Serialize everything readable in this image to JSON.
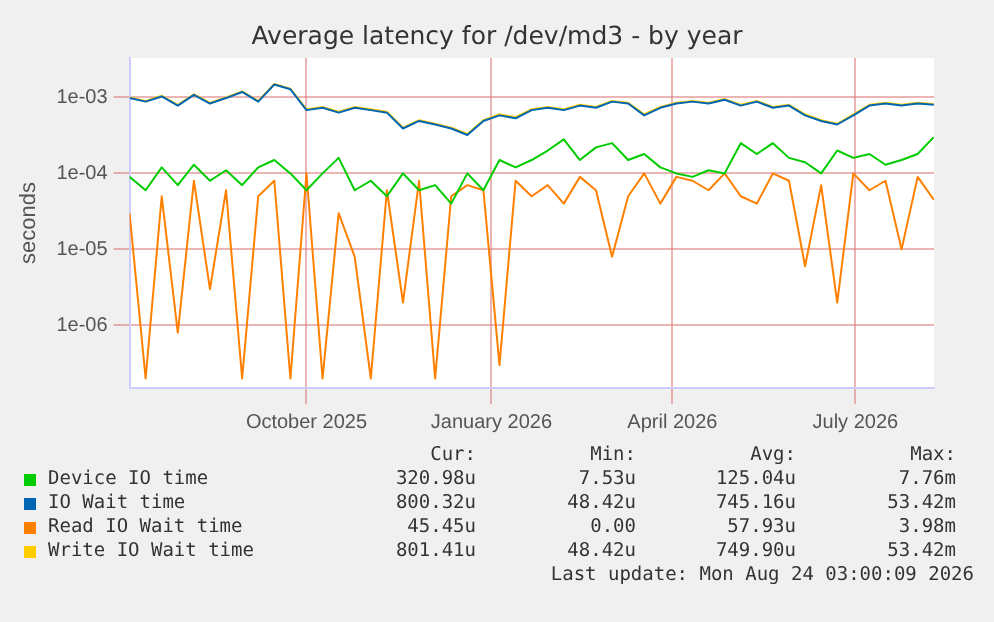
{
  "chart_data": {
    "type": "line",
    "title": "Average latency for /dev/md3 - by year",
    "ylabel": "seconds",
    "log": "y",
    "grid": true,
    "legend": "bottom",
    "marker": "none",
    "line_style": "solid",
    "x": [
      "2025-07-20",
      "2025-07-28",
      "2025-08-05",
      "2025-08-13",
      "2025-08-21",
      "2025-08-29",
      "2025-09-06",
      "2025-09-14",
      "2025-09-22",
      "2025-09-30",
      "2025-10-08",
      "2025-10-16",
      "2025-10-24",
      "2025-11-01",
      "2025-11-09",
      "2025-11-17",
      "2025-11-25",
      "2025-12-03",
      "2025-12-11",
      "2025-12-19",
      "2025-12-27",
      "2026-01-04",
      "2026-01-12",
      "2026-01-20",
      "2026-01-28",
      "2026-02-05",
      "2026-02-13",
      "2026-02-21",
      "2026-03-01",
      "2026-03-09",
      "2026-03-17",
      "2026-03-25",
      "2026-04-02",
      "2026-04-10",
      "2026-04-18",
      "2026-04-26",
      "2026-05-04",
      "2026-05-12",
      "2026-05-20",
      "2026-05-28",
      "2026-06-05",
      "2026-06-13",
      "2026-06-21",
      "2026-06-29",
      "2026-07-07",
      "2026-07-15",
      "2026-07-23",
      "2026-07-31",
      "2026-08-08",
      "2026-08-16",
      "2026-08-24"
    ],
    "xlim": [
      "2025-07-20",
      "2026-08-24T03:00"
    ],
    "xticks": [
      {
        "value": "2025-10-16",
        "label": "October 2025"
      },
      {
        "value": "2026-01-16",
        "label": "January 2026"
      },
      {
        "value": "2026-04-16",
        "label": "April 2026"
      },
      {
        "value": "2026-07-16",
        "label": "July 2026"
      }
    ],
    "ylim": [
      1.5e-07,
      0.0033
    ],
    "yticks": [
      {
        "value": 1e-06,
        "label": "1e-06"
      },
      {
        "value": 1e-05,
        "label": "1e-05"
      },
      {
        "value": 0.0001,
        "label": "1e-04"
      },
      {
        "value": 0.001,
        "label": "1e-03"
      }
    ],
    "series": [
      {
        "name": "Device IO time",
        "color": "#00cc00",
        "values": [
          9e-05,
          6e-05,
          0.00012,
          7e-05,
          0.00013,
          8e-05,
          0.00011,
          7e-05,
          0.00012,
          0.00015,
          0.0001,
          6e-05,
          0.0001,
          0.00016,
          6e-05,
          8e-05,
          5e-05,
          0.0001,
          6e-05,
          7e-05,
          4e-05,
          0.0001,
          6e-05,
          0.00015,
          0.00012,
          0.00015,
          0.0002,
          0.00028,
          0.00015,
          0.00022,
          0.00025,
          0.00015,
          0.00018,
          0.00012,
          0.0001,
          9e-05,
          0.00011,
          0.0001,
          0.00025,
          0.00018,
          0.00025,
          0.00016,
          0.00014,
          0.0001,
          0.0002,
          0.00016,
          0.00018,
          0.00013,
          0.00015,
          0.00018,
          0.0003
        ]
      },
      {
        "name": "IO Wait time",
        "color": "#0066b3",
        "values": [
          0.00098,
          0.00088,
          0.00103,
          0.00078,
          0.00108,
          0.00083,
          0.00098,
          0.00118,
          0.00088,
          0.00148,
          0.00128,
          0.00068,
          0.00073,
          0.00063,
          0.00073,
          0.00068,
          0.00063,
          0.00039,
          0.00049,
          0.00044,
          0.00039,
          0.00032,
          0.00049,
          0.00058,
          0.00053,
          0.00068,
          0.00073,
          0.00068,
          0.00078,
          0.00073,
          0.00088,
          0.00083,
          0.00058,
          0.00073,
          0.00083,
          0.00088,
          0.00083,
          0.00093,
          0.00078,
          0.00088,
          0.00073,
          0.00078,
          0.00058,
          0.00049,
          0.00044,
          0.00058,
          0.00078,
          0.00083,
          0.00078,
          0.00083,
          0.0008
        ]
      },
      {
        "name": "Read IO Wait time",
        "color": "#ff8000",
        "values": [
          3e-05,
          2e-07,
          5e-05,
          8e-07,
          8e-05,
          3e-06,
          6e-05,
          2e-07,
          5e-05,
          8e-05,
          2e-07,
          0.0001,
          2e-07,
          3e-05,
          8e-06,
          2e-07,
          6e-05,
          2e-06,
          8e-05,
          2e-07,
          5e-05,
          7e-05,
          6e-05,
          3e-07,
          8e-05,
          5e-05,
          7e-05,
          4e-05,
          9e-05,
          6e-05,
          8e-06,
          5e-05,
          0.0001,
          4e-05,
          9e-05,
          8e-05,
          6e-05,
          0.0001,
          5e-05,
          4e-05,
          0.0001,
          8e-05,
          6e-06,
          7e-05,
          2e-06,
          0.0001,
          6e-05,
          8e-05,
          1e-05,
          9e-05,
          4.5e-05
        ]
      },
      {
        "name": "Write IO Wait time",
        "color": "#ffcc00",
        "values": [
          0.001,
          0.0009,
          0.00105,
          0.0008,
          0.0011,
          0.00085,
          0.001,
          0.0012,
          0.0009,
          0.0015,
          0.0013,
          0.0007,
          0.00075,
          0.00065,
          0.00075,
          0.0007,
          0.00065,
          0.0004,
          0.0005,
          0.00045,
          0.0004,
          0.00033,
          0.0005,
          0.0006,
          0.00055,
          0.0007,
          0.00075,
          0.0007,
          0.0008,
          0.00075,
          0.0009,
          0.00085,
          0.0006,
          0.00075,
          0.00085,
          0.0009,
          0.00085,
          0.00095,
          0.0008,
          0.0009,
          0.00075,
          0.0008,
          0.0006,
          0.0005,
          0.00045,
          0.0006,
          0.0008,
          0.00085,
          0.0008,
          0.00085,
          0.00082
        ]
      }
    ],
    "annotations": [
      "Cur:",
      "Min:",
      "Avg:",
      "Max:",
      "320.98u",
      "7.53u",
      "125.04u",
      "7.76m",
      "800.32u",
      "48.42u",
      "745.16u",
      "53.42m",
      "45.45u",
      "0.00",
      "57.93u",
      "3.98m",
      "801.41u",
      "48.42u",
      "749.90u",
      "53.42m",
      "Last update: Mon Aug 24 03:00:09 2026"
    ]
  }
}
